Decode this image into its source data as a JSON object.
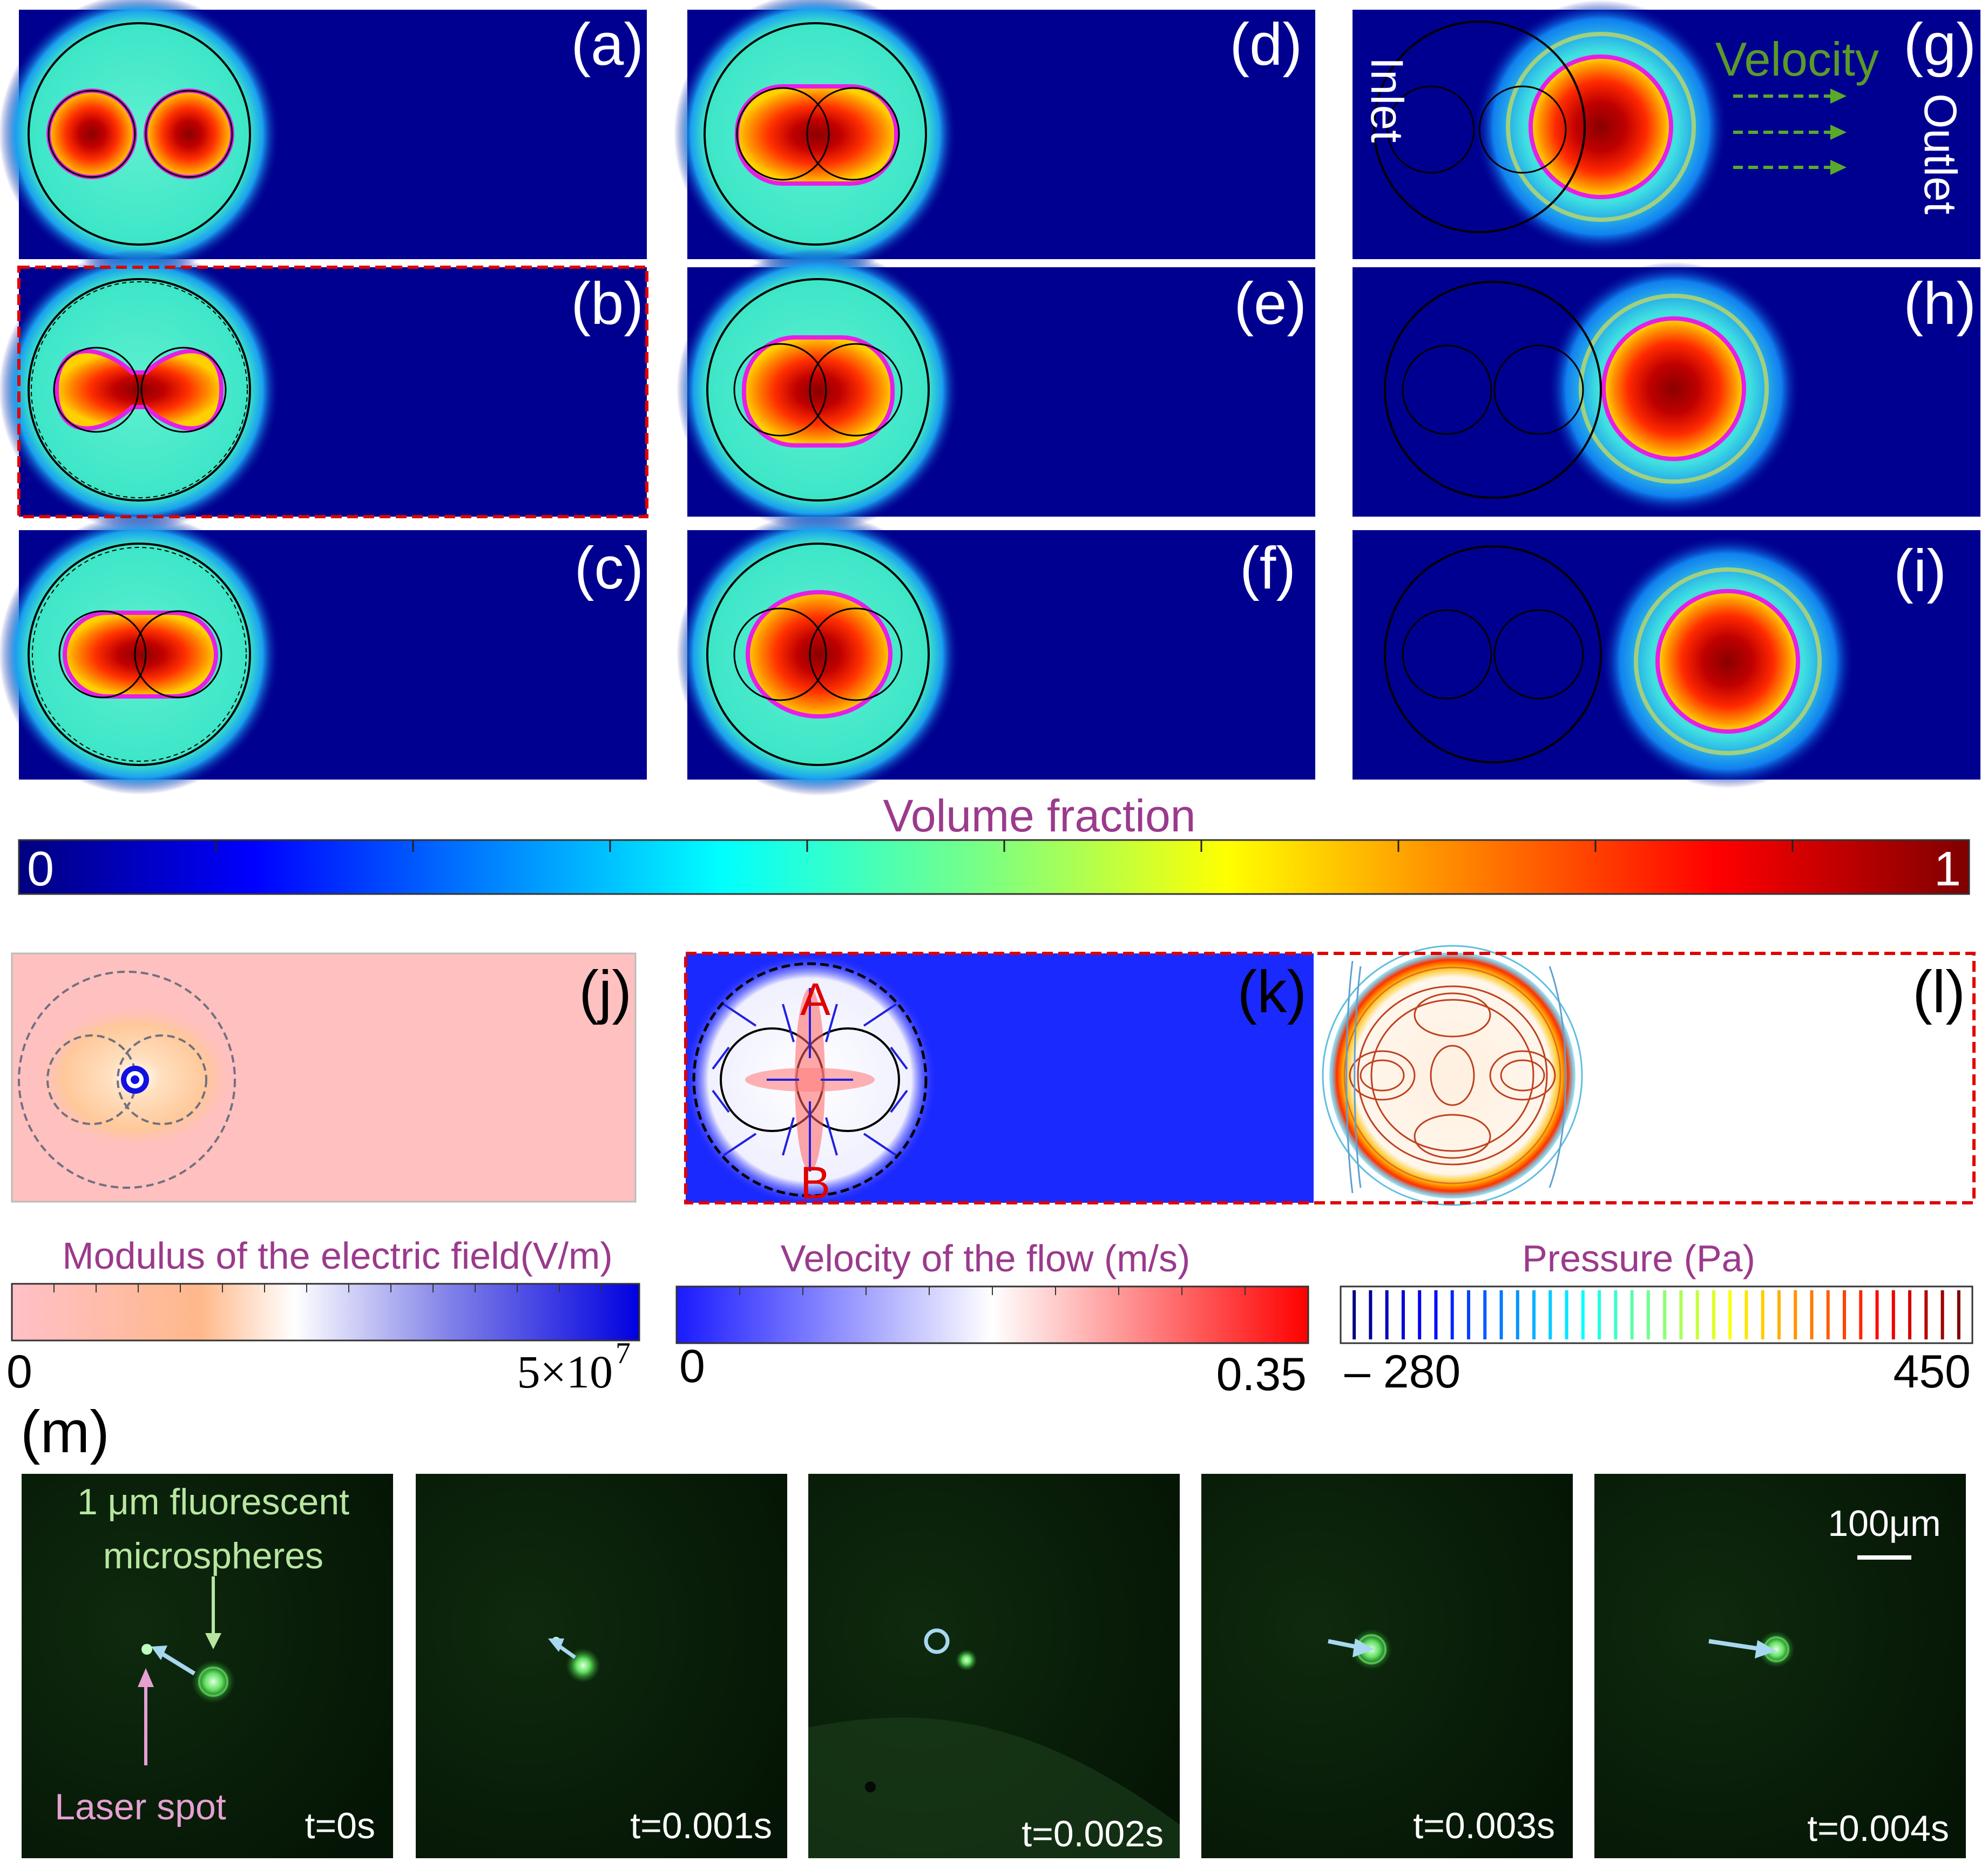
{
  "figure": {
    "panels": {
      "a": "(a)",
      "b": "(b)",
      "c": "(c)",
      "d": "(d)",
      "e": "(e)",
      "f": "(f)",
      "g": "(g)",
      "h": "(h)",
      "i": "(i)",
      "j": "(j)",
      "k": "(k)",
      "l": "(l)",
      "m": "(m)"
    },
    "flow": {
      "velocity": "Velocity",
      "inlet": "Inlet",
      "outlet": "Outlet"
    },
    "points": {
      "a": "A",
      "b": "B"
    },
    "colorbars": {
      "volume": {
        "title": "Volume fraction",
        "min": "0",
        "max": "1"
      },
      "efield": {
        "title": "Modulus of the electric field(V/m)",
        "min": "0",
        "max": "5×10",
        "max_exp": "7"
      },
      "velocity": {
        "title": "Velocity of the flow (m/s)",
        "min": "0",
        "max": "0.35"
      },
      "pressure": {
        "title": "Pressure (Pa)",
        "min": "– 280",
        "max": "450"
      }
    },
    "micrographs": {
      "bead_label_1": "1 μm fluorescent",
      "bead_label_2": "microspheres",
      "laser_label": "Laser spot",
      "scale": "100μm",
      "times": [
        "t=0s",
        "t=0.001s",
        "t=0.002s",
        "t=0.003s",
        "t=0.004s"
      ]
    },
    "colors": {
      "navy": "#000080",
      "cyan": "#3de6c8",
      "red": "#cc0000",
      "magenta": "#e61ee6",
      "purple": "#9b3a8c",
      "green_text": "#5a9a2a",
      "pale_green": "#b8e6a0",
      "pink": "#e6a0d2",
      "arrow_blue": "#a8d8f0"
    }
  }
}
